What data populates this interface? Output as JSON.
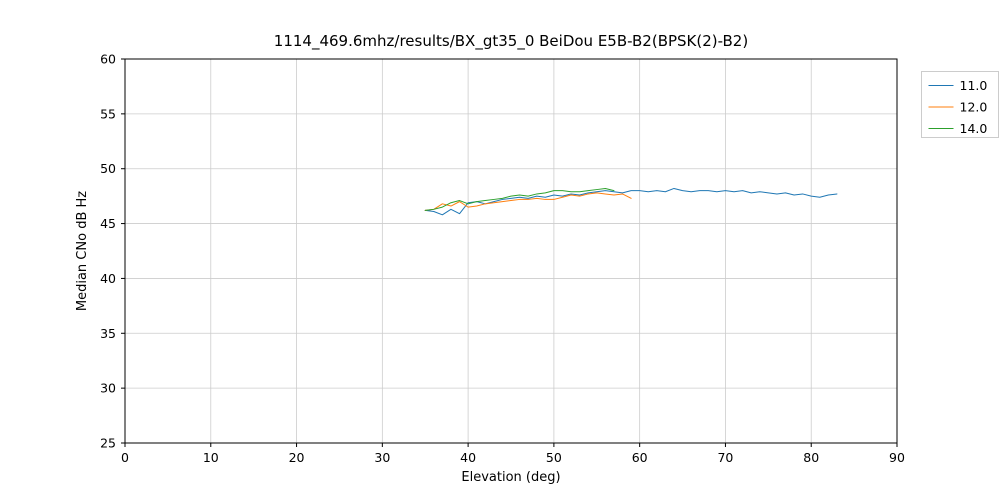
{
  "chart_data": {
    "type": "line",
    "title": "1114_469.6mhz/results/BX_gt35_0 BeiDou E5B-B2(BPSK(2)-B2)",
    "xlabel": "Elevation (deg)",
    "ylabel": "Median CNo dB Hz",
    "xlim": [
      0,
      90
    ],
    "ylim": [
      25,
      60
    ],
    "x_ticks": [
      0,
      10,
      20,
      30,
      40,
      50,
      60,
      70,
      80,
      90
    ],
    "y_ticks": [
      25,
      30,
      35,
      40,
      45,
      50,
      55,
      60
    ],
    "grid": true,
    "legend_position": "outside-top-right",
    "series": [
      {
        "name": "11.0",
        "color": "#1f77b4",
        "x": [
          35,
          36,
          37,
          38,
          39,
          40,
          41,
          42,
          43,
          44,
          45,
          46,
          47,
          48,
          49,
          50,
          51,
          52,
          53,
          54,
          55,
          56,
          57,
          58,
          59,
          60,
          61,
          62,
          63,
          64,
          65,
          66,
          67,
          68,
          69,
          70,
          71,
          72,
          73,
          74,
          75,
          76,
          77,
          78,
          79,
          80,
          81,
          82,
          83
        ],
        "y": [
          46.2,
          46.1,
          45.8,
          46.3,
          45.9,
          46.9,
          47.0,
          46.8,
          47.0,
          47.2,
          47.3,
          47.4,
          47.3,
          47.5,
          47.4,
          47.6,
          47.5,
          47.7,
          47.6,
          47.8,
          47.9,
          48.0,
          47.9,
          47.8,
          48.0,
          48.0,
          47.9,
          48.0,
          47.9,
          48.2,
          48.0,
          47.9,
          48.0,
          48.0,
          47.9,
          48.0,
          47.9,
          48.0,
          47.8,
          47.9,
          47.8,
          47.7,
          47.8,
          47.6,
          47.7,
          47.5,
          47.4,
          47.6,
          47.7
        ]
      },
      {
        "name": "12.0",
        "color": "#ff7f0e",
        "x": [
          35,
          36,
          37,
          38,
          39,
          40,
          41,
          42,
          43,
          44,
          45,
          46,
          47,
          48,
          49,
          50,
          51,
          52,
          53,
          54,
          55,
          56,
          57,
          58,
          59
        ],
        "y": [
          46.2,
          46.3,
          46.8,
          46.6,
          47.0,
          46.5,
          46.6,
          46.8,
          46.9,
          47.0,
          47.1,
          47.2,
          47.2,
          47.3,
          47.2,
          47.2,
          47.4,
          47.6,
          47.5,
          47.7,
          47.8,
          47.7,
          47.6,
          47.7,
          47.3
        ]
      },
      {
        "name": "14.0",
        "color": "#2ca02c",
        "x": [
          35,
          36,
          37,
          38,
          39,
          40,
          41,
          42,
          43,
          44,
          45,
          46,
          47,
          48,
          49,
          50,
          51,
          52,
          53,
          54,
          55,
          56,
          57
        ],
        "y": [
          46.2,
          46.3,
          46.5,
          46.9,
          47.1,
          46.8,
          47.0,
          47.1,
          47.2,
          47.3,
          47.5,
          47.6,
          47.5,
          47.7,
          47.8,
          48.0,
          48.0,
          47.9,
          47.9,
          48.0,
          48.1,
          48.2,
          48.0
        ]
      }
    ]
  }
}
